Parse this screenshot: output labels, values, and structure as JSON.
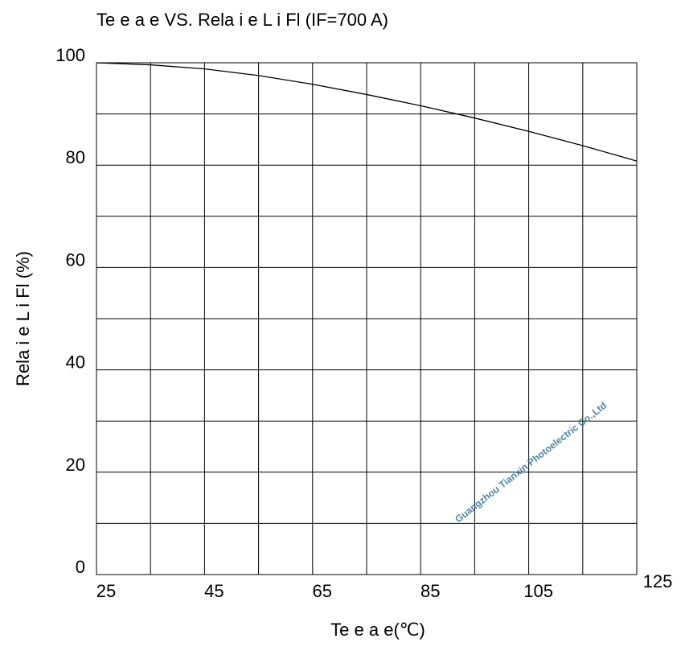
{
  "chart_data": {
    "type": "line",
    "title": "Te e a e VS. Rela i e L i Fl (IF=700 A)",
    "xlabel": "Te e a e(℃)",
    "ylabel": "Rela i e L i Fl (%)",
    "xlim": [
      25,
      125
    ],
    "ylim": [
      0,
      100
    ],
    "x_ticks": [
      "25",
      "45",
      "65",
      "85",
      "105",
      "125"
    ],
    "y_ticks": [
      "0",
      "20",
      "40",
      "60",
      "80",
      "100"
    ],
    "grid": true,
    "series": [
      {
        "x": [
          25,
          35,
          45,
          55,
          65,
          75,
          85,
          95,
          105,
          115,
          125
        ],
        "y": [
          100,
          99.6,
          98.8,
          97.5,
          95.8,
          93.8,
          91.6,
          89.2,
          86.6,
          83.8,
          80.8
        ]
      }
    ],
    "watermark": "Guangzhou Tianxin Photoelectric Co.,Ltd",
    "colors": {
      "line": "#000000",
      "grid": "#000000",
      "watermark": "#2f6e9a"
    }
  }
}
